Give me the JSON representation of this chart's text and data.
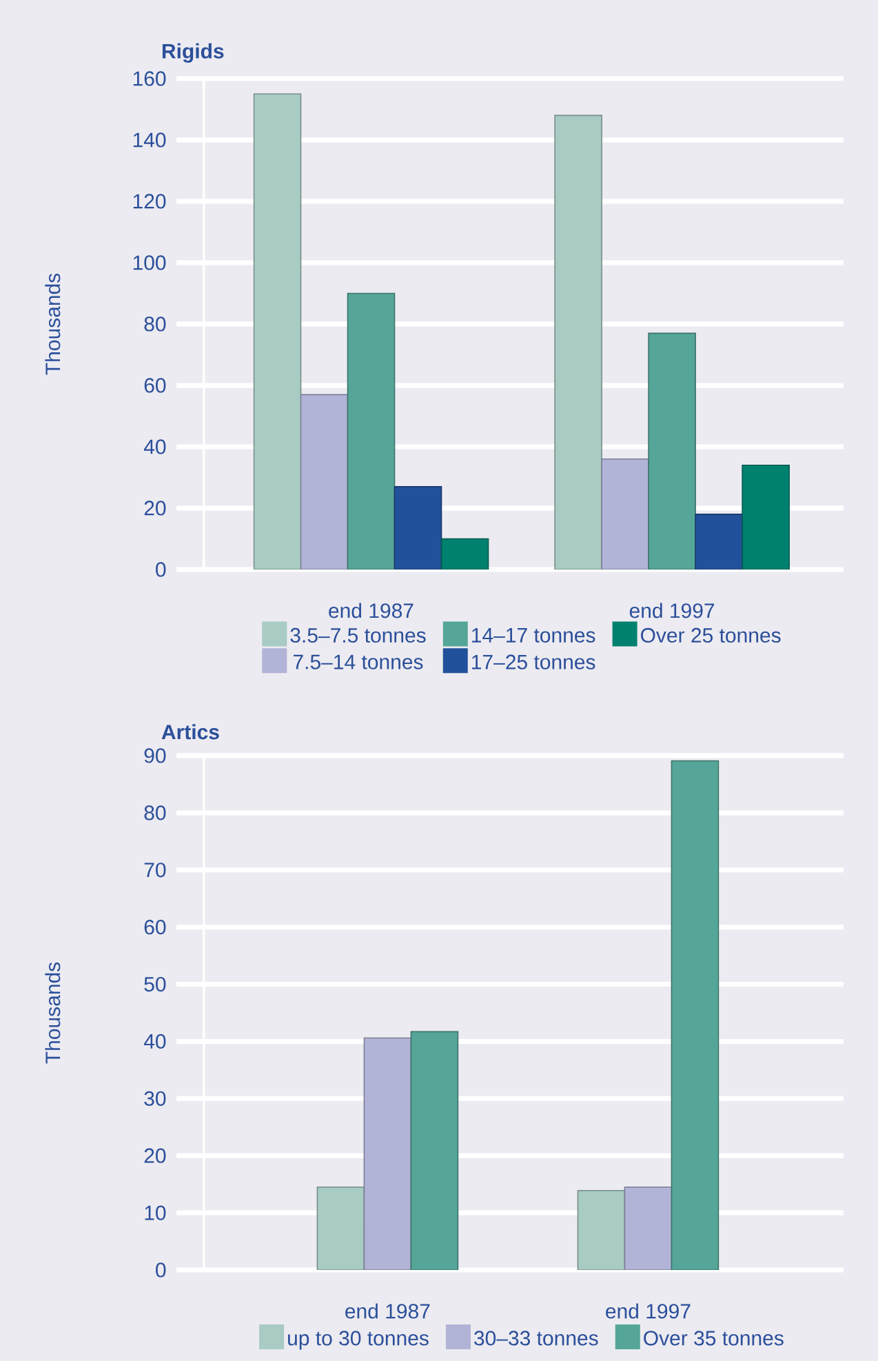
{
  "chart_data": [
    {
      "type": "bar",
      "title": "Rigids",
      "ylabel": "Thousands",
      "categories": [
        "end 1987",
        "end 1997"
      ],
      "series": [
        {
          "name": "3.5–7.5 tonnes",
          "color": "#a8cbc3",
          "values": [
            155,
            148
          ]
        },
        {
          "name": "7.5–14 tonnes",
          "color": "#b1b4d7",
          "values": [
            57,
            36
          ]
        },
        {
          "name": "14–17 tonnes",
          "color": "#55a698",
          "values": [
            90,
            77
          ]
        },
        {
          "name": "17–25 tonnes",
          "color": "#22519b",
          "values": [
            27,
            18
          ]
        },
        {
          "name": "Over 25 tonnes",
          "color": "#008170",
          "values": [
            10,
            34
          ]
        }
      ],
      "ylim": [
        0,
        160
      ],
      "yticks": [
        0,
        20,
        40,
        60,
        80,
        100,
        120,
        140,
        160
      ],
      "grid": "y",
      "legend": "bottom"
    },
    {
      "type": "bar",
      "title": "Artics",
      "ylabel": "Thousands",
      "categories": [
        "end 1987",
        "end 1997"
      ],
      "series": [
        {
          "name": "up to 30 tonnes",
          "color": "#a8cbc3",
          "values": [
            14.5,
            13.9
          ]
        },
        {
          "name": "30–33 tonnes",
          "color": "#b1b4d7",
          "values": [
            40.6,
            14.5
          ]
        },
        {
          "name": "Over 35 tonnes",
          "color": "#55a698",
          "values": [
            41.7,
            89.1
          ]
        }
      ],
      "ylim": [
        0,
        90
      ],
      "yticks": [
        0,
        10,
        20,
        30,
        40,
        50,
        60,
        70,
        80,
        90
      ],
      "grid": "y",
      "legend": "bottom"
    }
  ]
}
